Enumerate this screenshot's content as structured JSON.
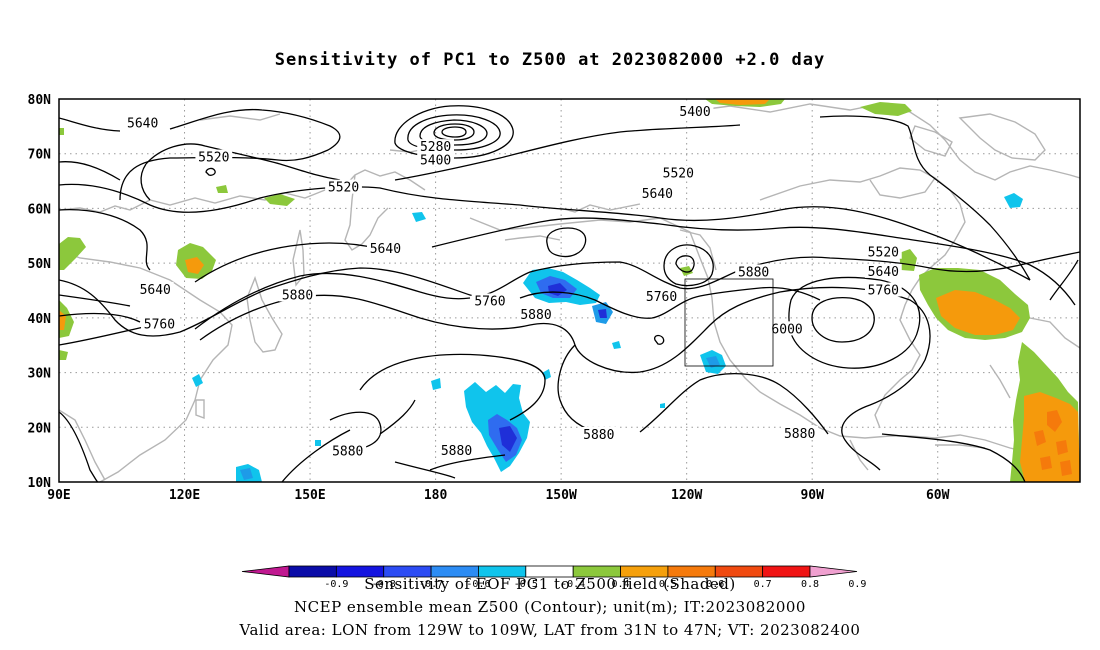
{
  "title": "Sensitivity of PC1 to Z500 at 2023082000 +2.0 day",
  "map": {
    "lon_labels": [
      "90E",
      "120E",
      "150E",
      "180",
      "150W",
      "120W",
      "90W",
      "60W"
    ],
    "lat_labels": [
      "80N",
      "70N",
      "60N",
      "50N",
      "40N",
      "30N",
      "20N",
      "10N"
    ],
    "contour_labels": [
      {
        "text": "5640",
        "lon": 110,
        "lat": 75.5
      },
      {
        "text": "5520",
        "lon": 127,
        "lat": 69.3
      },
      {
        "text": "5280",
        "lon": 180,
        "lat": 71.2
      },
      {
        "text": "5400",
        "lon": 180,
        "lat": 68.8
      },
      {
        "text": "5520",
        "lon": 158,
        "lat": 63.8
      },
      {
        "text": "5400",
        "lon": -118,
        "lat": 77.6
      },
      {
        "text": "5520",
        "lon": -122,
        "lat": 66.4
      },
      {
        "text": "5640",
        "lon": -127,
        "lat": 62.6
      },
      {
        "text": "5640",
        "lon": 168,
        "lat": 52.6
      },
      {
        "text": "5520",
        "lon": -73,
        "lat": 51.9
      },
      {
        "text": "5640",
        "lon": -73,
        "lat": 48.4
      },
      {
        "text": "5760",
        "lon": -73,
        "lat": 45.0
      },
      {
        "text": "5880",
        "lon": -104,
        "lat": 48.3
      },
      {
        "text": "5640",
        "lon": 113,
        "lat": 45.1
      },
      {
        "text": "5880",
        "lon": 147,
        "lat": 44.1
      },
      {
        "text": "5760",
        "lon": -167,
        "lat": 43.0
      },
      {
        "text": "5880",
        "lon": -156,
        "lat": 40.5
      },
      {
        "text": "5760",
        "lon": -126,
        "lat": 43.8
      },
      {
        "text": "6000",
        "lon": -96,
        "lat": 37.9
      },
      {
        "text": "5760",
        "lon": 114,
        "lat": 38.8
      },
      {
        "text": "5880",
        "lon": 159,
        "lat": 15.6
      },
      {
        "text": "5880",
        "lon": -175,
        "lat": 15.7
      },
      {
        "text": "5880",
        "lon": -141,
        "lat": 18.6
      },
      {
        "text": "5880",
        "lon": -93,
        "lat": 18.8
      }
    ],
    "shading_colors": {
      "neg_strong": "#1f2fd8",
      "neg_mid": "#2f6cf0",
      "neg_light": "#1e9be8",
      "neg_pale": "#10c4ec",
      "pos_light": "#8cc83c",
      "pos_mid": "#f59a0c"
    }
  },
  "colorbar": {
    "tick_labels": [
      "-0.9",
      "-0.8",
      "-0.7",
      "-0.6",
      "-0.5",
      "-0.4",
      "0.4",
      "0.5",
      "0.6",
      "0.7",
      "0.8",
      "0.9"
    ],
    "colors": [
      "#c01890",
      "#0a0ca8",
      "#1414e0",
      "#2c4cf4",
      "#2c8cf4",
      "#10c4ec",
      "#ffffff",
      "#8cc83c",
      "#f5a00c",
      "#f57a0c",
      "#f04a10",
      "#f01414",
      "#f0a0d0"
    ]
  },
  "footer": {
    "line1": "Sensitivity of EOF PC1 to Z500 field (Shaded)",
    "line2": "NCEP ensemble mean Z500 (Contour); unit(m); IT:2023082000",
    "line3": "Valid area: LON from 129W to 109W, LAT from 31N to 47N; VT: 2023082400"
  }
}
